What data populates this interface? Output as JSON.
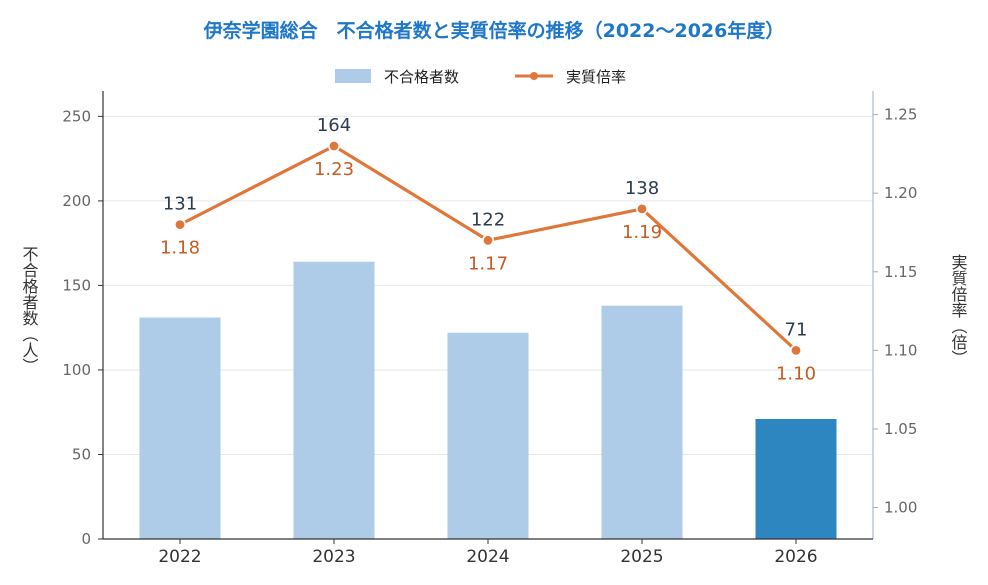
{
  "colors": {
    "bar": "#aecbe7",
    "bar_highlight": "#2e86c1",
    "line": "#e0773a",
    "rate_label": "#c75c22",
    "title": "#1f77c9",
    "grid": "#e6e6e6"
  },
  "chart_data": {
    "type": "bar+line",
    "title": "伊奈学園総合　不合格者数と実質倍率の推移（2022〜2026年度）",
    "categories": [
      "2022",
      "2023",
      "2024",
      "2025",
      "2026"
    ],
    "highlight_category": "2026",
    "series": [
      {
        "name": "不合格者数",
        "type": "bar",
        "axis": "left",
        "values": [
          131,
          164,
          122,
          138,
          71
        ],
        "labels": [
          "131",
          "164",
          "122",
          "138",
          "71"
        ]
      },
      {
        "name": "実質倍率",
        "type": "line",
        "axis": "right",
        "values": [
          1.18,
          1.23,
          1.17,
          1.19,
          1.1
        ],
        "labels": [
          "1.18",
          "1.23",
          "1.17",
          "1.19",
          "1.10"
        ]
      }
    ],
    "y_left": {
      "label": "不合格者数（人）",
      "ylim": [
        0,
        265
      ],
      "ticks": [
        0,
        50,
        100,
        150,
        200,
        250
      ]
    },
    "y_right": {
      "label": "実質倍率（倍）",
      "ylim": [
        0.98,
        1.265
      ],
      "ticks": [
        "1.00",
        "1.05",
        "1.10",
        "1.15",
        "1.20",
        "1.25"
      ]
    },
    "legend_position": "top-center",
    "grid": true
  }
}
